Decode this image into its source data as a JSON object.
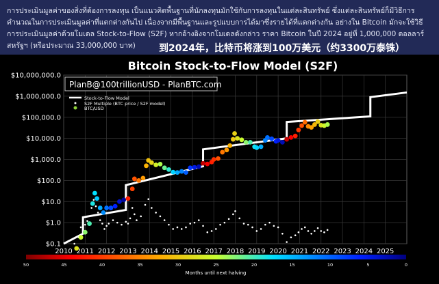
{
  "header": {
    "thai_paragraph": "การประเมินมูลค่าของสิ่งที่ต้องการลงทุน เป็นแนวคิดพื้นฐานที่นักลงทุนมักใช้กับการลงทุนในแต่ละสินทรัพย์ ซึ่งแต่ละสินทรัพย์ก็มีวิธีการคำนวณในการประเมินมูลค่าที่แตกต่างกันไป เนื่องจากมีพื้นฐานและรูปแบบการได้มาซึ่งรายได้ที่แตกต่างกัน อย่างใน Bitcoin มักจะใช้วิธีการประเมินมูลค่าด้วยโมเดล Stock-to-Flow (S2F) หากอ้างอิงจากโมเดลดังกล่าว ราคา Bitcoin ในปี 2024 อยู่ที่ 1,000,000 ดอลลาร์สหรัฐฯ (หรือประมาณ 33,000,000 บาท)",
    "chinese_caption": "到2024年，比特币将涨到100万美元（约3300万泰铢）"
  },
  "chart_data": {
    "type": "scatter",
    "title": "Bitcoin Stock-to-Flow Model (S2F)",
    "watermark": "PlanB@100trillionUSD - PlanBTC.com",
    "y_scale": "log",
    "ylim": [
      0.1,
      10000000
    ],
    "xlim": [
      2010,
      2026
    ],
    "y_ticks": [
      "$0.1",
      "$1.0",
      "$10.0",
      "$100.0",
      "$1,000.0",
      "$10,000.0",
      "$100,000.0",
      "$1,000,000.0",
      "$10,000,000.0"
    ],
    "x_ticks": [
      "2010",
      "2011",
      "2012",
      "2013",
      "2014",
      "2015",
      "2016",
      "2017",
      "2018",
      "2019",
      "2020",
      "2021",
      "2022",
      "2023",
      "2024",
      "2025"
    ],
    "grid": true,
    "legend_position": "top-left",
    "legend": {
      "model": "Stock-to-Flow Model",
      "multiple": "S2F Multiple (BTC price / S2F model)",
      "price": "BTC/USD"
    },
    "model_steps": [
      {
        "x_start": 2010.0,
        "x_end": 2010.9,
        "y_start": 0.1,
        "y_end": 0.3
      },
      {
        "x_start": 2010.9,
        "x_end": 2012.9,
        "y_start": 1.8,
        "y_end": 4.0
      },
      {
        "x_start": 2012.9,
        "x_end": 2016.5,
        "y_start": 60,
        "y_end": 470
      },
      {
        "x_start": 2016.5,
        "x_end": 2020.4,
        "y_start": 3000,
        "y_end": 10000
      },
      {
        "x_start": 2020.4,
        "x_end": 2024.3,
        "y_start": 60000,
        "y_end": 110000
      },
      {
        "x_start": 2024.3,
        "x_end": 2026.0,
        "y_start": 900000,
        "y_end": 1500000
      }
    ],
    "price_points": [
      [
        2010.6,
        0.06
      ],
      [
        2010.8,
        0.2
      ],
      [
        2011.0,
        0.35
      ],
      [
        2011.2,
        0.9
      ],
      [
        2011.35,
        8
      ],
      [
        2011.45,
        25
      ],
      [
        2011.55,
        14
      ],
      [
        2011.7,
        5
      ],
      [
        2011.85,
        3
      ],
      [
        2012.0,
        5
      ],
      [
        2012.2,
        5
      ],
      [
        2012.4,
        6
      ],
      [
        2012.6,
        10
      ],
      [
        2012.8,
        12
      ],
      [
        2013.0,
        14
      ],
      [
        2013.2,
        40
      ],
      [
        2013.3,
        120
      ],
      [
        2013.5,
        100
      ],
      [
        2013.7,
        130
      ],
      [
        2013.85,
        500
      ],
      [
        2013.95,
        900
      ],
      [
        2014.1,
        700
      ],
      [
        2014.3,
        550
      ],
      [
        2014.5,
        600
      ],
      [
        2014.7,
        400
      ],
      [
        2014.9,
        330
      ],
      [
        2015.1,
        250
      ],
      [
        2015.3,
        240
      ],
      [
        2015.5,
        270
      ],
      [
        2015.7,
        240
      ],
      [
        2015.9,
        400
      ],
      [
        2016.1,
        420
      ],
      [
        2016.3,
        450
      ],
      [
        2016.5,
        650
      ],
      [
        2016.7,
        610
      ],
      [
        2016.9,
        750
      ],
      [
        2017.0,
        1000
      ],
      [
        2017.2,
        1100
      ],
      [
        2017.4,
        2200
      ],
      [
        2017.6,
        2800
      ],
      [
        2017.75,
        4500
      ],
      [
        2017.9,
        9000
      ],
      [
        2017.97,
        17000
      ],
      [
        2018.1,
        10000
      ],
      [
        2018.3,
        8500
      ],
      [
        2018.5,
        6500
      ],
      [
        2018.7,
        6500
      ],
      [
        2018.9,
        4000
      ],
      [
        2019.0,
        3600
      ],
      [
        2019.2,
        4000
      ],
      [
        2019.4,
        8000
      ],
      [
        2019.5,
        11000
      ],
      [
        2019.7,
        9500
      ],
      [
        2019.9,
        7200
      ],
      [
        2020.0,
        8000
      ],
      [
        2020.2,
        6500
      ],
      [
        2020.4,
        9000
      ],
      [
        2020.6,
        11000
      ],
      [
        2020.8,
        13000
      ],
      [
        2020.95,
        25000
      ],
      [
        2021.1,
        40000
      ],
      [
        2021.25,
        58000
      ],
      [
        2021.4,
        37000
      ],
      [
        2021.55,
        33000
      ],
      [
        2021.7,
        45000
      ],
      [
        2021.85,
        62000
      ],
      [
        2022.0,
        42000
      ],
      [
        2022.15,
        40000
      ],
      [
        2022.3,
        45000
      ]
    ],
    "multiple_points": [
      [
        2010.5,
        0.1
      ],
      [
        2010.7,
        0.2
      ],
      [
        2010.8,
        0.6
      ],
      [
        2010.9,
        1.0
      ],
      [
        2011.0,
        0.8
      ],
      [
        2011.1,
        1.2
      ],
      [
        2011.3,
        5
      ],
      [
        2011.4,
        12
      ],
      [
        2011.5,
        6
      ],
      [
        2011.6,
        3
      ],
      [
        2011.7,
        1.3
      ],
      [
        2011.8,
        0.9
      ],
      [
        2011.9,
        0.5
      ],
      [
        2012.0,
        0.7
      ],
      [
        2012.1,
        0.9
      ],
      [
        2012.3,
        1.3
      ],
      [
        2012.5,
        1.0
      ],
      [
        2012.7,
        0.8
      ],
      [
        2012.9,
        1.1
      ],
      [
        2013.0,
        0.9
      ],
      [
        2013.1,
        1.6
      ],
      [
        2013.2,
        5
      ],
      [
        2013.3,
        2.5
      ],
      [
        2013.4,
        1.3
      ],
      [
        2013.6,
        2
      ],
      [
        2013.8,
        7
      ],
      [
        2013.95,
        13
      ],
      [
        2014.1,
        5
      ],
      [
        2014.3,
        3
      ],
      [
        2014.5,
        2
      ],
      [
        2014.7,
        1.3
      ],
      [
        2014.9,
        0.8
      ],
      [
        2015.1,
        0.5
      ],
      [
        2015.3,
        0.6
      ],
      [
        2015.5,
        0.5
      ],
      [
        2015.7,
        0.6
      ],
      [
        2015.9,
        0.9
      ],
      [
        2016.1,
        1.0
      ],
      [
        2016.3,
        1.3
      ],
      [
        2016.5,
        0.7
      ],
      [
        2016.7,
        0.35
      ],
      [
        2016.9,
        0.4
      ],
      [
        2017.1,
        0.5
      ],
      [
        2017.3,
        0.8
      ],
      [
        2017.5,
        1.0
      ],
      [
        2017.7,
        1.5
      ],
      [
        2017.9,
        2.5
      ],
      [
        2018.0,
        3.5
      ],
      [
        2018.2,
        1.6
      ],
      [
        2018.4,
        0.9
      ],
      [
        2018.6,
        0.8
      ],
      [
        2018.8,
        0.6
      ],
      [
        2019.0,
        0.4
      ],
      [
        2019.2,
        0.5
      ],
      [
        2019.4,
        0.8
      ],
      [
        2019.6,
        1.0
      ],
      [
        2019.8,
        0.7
      ],
      [
        2020.0,
        0.6
      ],
      [
        2020.2,
        0.3
      ],
      [
        2020.4,
        0.12
      ],
      [
        2020.6,
        0.2
      ],
      [
        2020.8,
        0.25
      ],
      [
        2020.95,
        0.35
      ],
      [
        2021.1,
        0.5
      ],
      [
        2021.25,
        0.6
      ],
      [
        2021.4,
        0.4
      ],
      [
        2021.55,
        0.3
      ],
      [
        2021.7,
        0.4
      ],
      [
        2021.85,
        0.55
      ],
      [
        2022.0,
        0.4
      ],
      [
        2022.15,
        0.35
      ],
      [
        2022.3,
        0.45
      ]
    ],
    "colorbar": {
      "label": "Months until next halving",
      "ticks": [
        "50",
        "45",
        "40",
        "35",
        "30",
        "25",
        "20",
        "15",
        "10",
        "5",
        "0"
      ]
    }
  }
}
